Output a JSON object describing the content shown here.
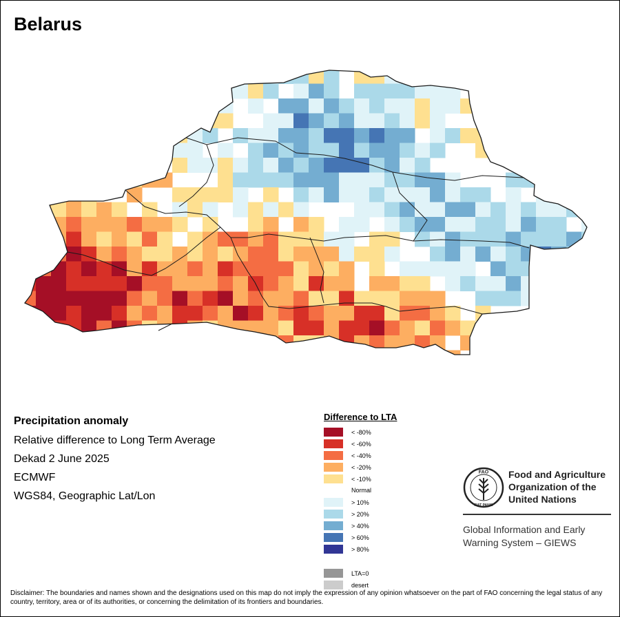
{
  "title": "Belarus",
  "info": {
    "heading": "Precipitation anomaly",
    "subtitle": "Relative difference to Long Term Average",
    "period": "Dekad 2 June 2025",
    "source": "ECMWF",
    "projection": "WGS84, Geographic Lat/Lon"
  },
  "legend": {
    "title": "Difference to LTA",
    "dry": [
      {
        "label": "< -80%",
        "color": "#a50f26"
      },
      {
        "label": "< -60%",
        "color": "#d73027"
      },
      {
        "label": "< -40%",
        "color": "#f46d43"
      },
      {
        "label": "< -20%",
        "color": "#fdae61"
      },
      {
        "label": "< -10%",
        "color": "#fee090"
      }
    ],
    "normal_label": "Normal",
    "wet": [
      {
        "label": "> 10%",
        "color": "#e0f3f8"
      },
      {
        "label": "> 20%",
        "color": "#abd9e9"
      },
      {
        "label": "> 40%",
        "color": "#74add1"
      },
      {
        "label": "> 60%",
        "color": "#4575b4"
      },
      {
        "label": "> 80%",
        "color": "#313695"
      }
    ],
    "other": [
      {
        "label": "LTA=0",
        "color": "#969696"
      },
      {
        "label": "desert",
        "color": "#cccccc"
      }
    ]
  },
  "fao": {
    "logo_text_top": "FAO",
    "logo_text_bottom": "FIAT PANIS",
    "name": "Food and Agriculture Organization of the United Nations",
    "giews": "Global Information and Early Warning System – GIEWS"
  },
  "disclaimer": "Disclaimer: The boundaries and names shown and the designations used on this map do not imply the expression of any opinion whatsoever on the part of FAO concerning the legal status of any country, territory, area or of its authorities, or concerning the delimitation of its frontiers and boundaries."
}
